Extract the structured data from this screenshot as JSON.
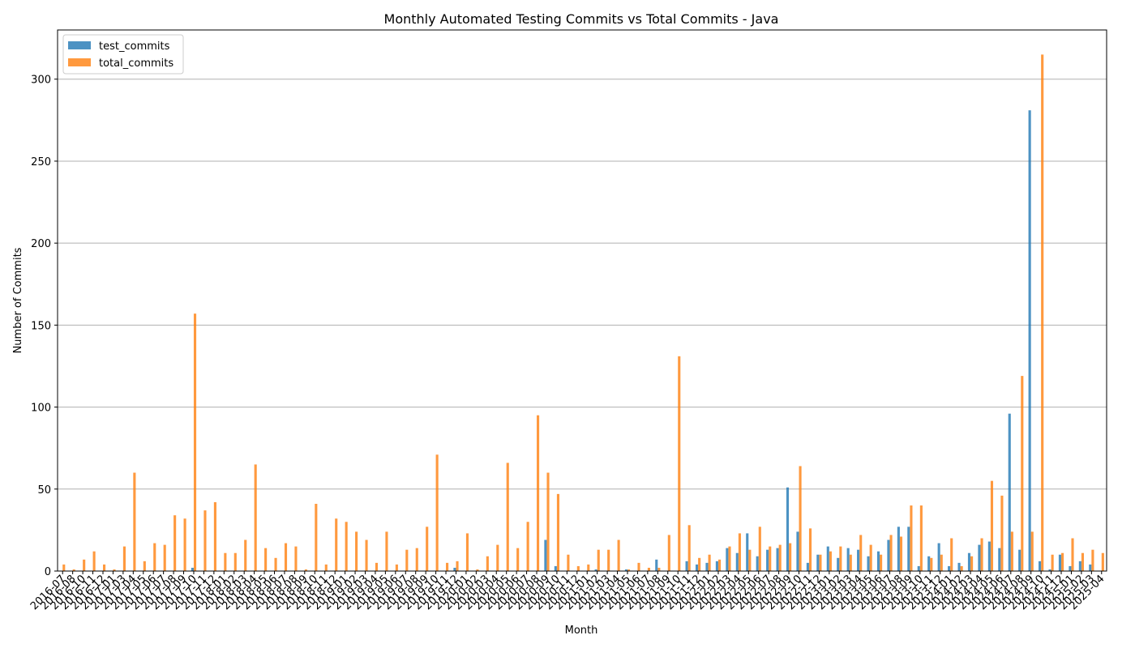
{
  "chart_data": {
    "type": "bar",
    "title": "Monthly Automated Testing Commits vs Total Commits - Java",
    "xlabel": "Month",
    "ylabel": "Number of Commits",
    "ylim": [
      0,
      330
    ],
    "yticks": [
      0,
      50,
      100,
      150,
      200,
      250,
      300
    ],
    "grid": "y",
    "legend": "top-left",
    "colors": {
      "test_commits": "#1f77b4",
      "total_commits": "#ff7f0e"
    },
    "categories": [
      "2016-07",
      "2016-08",
      "2016-10",
      "2016-11",
      "2016-12",
      "2017-01",
      "2017-03",
      "2017-04",
      "2017-05",
      "2017-06",
      "2017-07",
      "2017-08",
      "2017-09",
      "2017-10",
      "2017-11",
      "2017-12",
      "2018-01",
      "2018-02",
      "2018-03",
      "2018-04",
      "2018-05",
      "2018-06",
      "2018-07",
      "2018-08",
      "2018-09",
      "2018-10",
      "2018-11",
      "2018-12",
      "2019-01",
      "2019-02",
      "2019-03",
      "2019-04",
      "2019-05",
      "2019-06",
      "2019-07",
      "2019-08",
      "2019-09",
      "2019-10",
      "2019-11",
      "2019-12",
      "2020-01",
      "2020-02",
      "2020-03",
      "2020-04",
      "2020-05",
      "2020-06",
      "2020-07",
      "2020-08",
      "2020-09",
      "2020-10",
      "2020-11",
      "2020-12",
      "2021-01",
      "2021-02",
      "2021-03",
      "2021-04",
      "2021-05",
      "2021-06",
      "2021-07",
      "2021-08",
      "2021-09",
      "2021-10",
      "2021-11",
      "2021-12",
      "2022-01",
      "2022-02",
      "2022-03",
      "2022-04",
      "2022-05",
      "2022-06",
      "2022-07",
      "2022-08",
      "2022-09",
      "2022-10",
      "2022-11",
      "2022-12",
      "2023-01",
      "2023-02",
      "2023-03",
      "2023-04",
      "2023-05",
      "2023-06",
      "2023-07",
      "2023-08",
      "2023-09",
      "2023-10",
      "2023-11",
      "2023-12",
      "2024-01",
      "2024-02",
      "2024-03",
      "2024-04",
      "2024-05",
      "2024-06",
      "2024-07",
      "2024-08",
      "2024-09",
      "2024-10",
      "2024-11",
      "2024-12",
      "2025-01",
      "2025-02",
      "2025-03",
      "2025-04"
    ],
    "series": [
      {
        "name": "test_commits",
        "values": [
          0,
          0,
          0,
          0,
          0,
          0,
          0,
          0,
          0,
          0,
          0,
          0,
          0,
          2,
          0,
          0,
          0,
          0,
          0,
          0,
          0,
          0,
          0,
          0,
          0,
          0,
          0,
          0,
          0,
          0,
          0,
          0,
          0,
          0,
          0,
          0,
          0,
          0,
          0,
          2,
          0,
          0,
          0,
          0,
          0,
          0,
          0,
          0,
          19,
          3,
          0,
          0,
          0,
          1,
          0,
          0,
          1,
          0,
          0,
          7,
          0,
          0,
          6,
          4,
          5,
          6,
          14,
          11,
          23,
          9,
          13,
          14,
          51,
          24,
          5,
          10,
          15,
          8,
          14,
          13,
          9,
          12,
          19,
          27,
          27,
          3,
          9,
          17,
          3,
          5,
          11,
          16,
          18,
          14,
          96,
          13,
          281,
          6,
          1,
          10,
          3,
          6,
          4,
          0
        ]
      },
      {
        "name": "total_commits",
        "values": [
          4,
          1,
          7,
          12,
          4,
          1,
          15,
          60,
          6,
          17,
          16,
          34,
          32,
          157,
          37,
          42,
          11,
          11,
          19,
          65,
          14,
          8,
          17,
          15,
          1,
          41,
          4,
          32,
          30,
          24,
          19,
          5,
          24,
          4,
          13,
          14,
          27,
          71,
          5,
          6,
          23,
          1,
          9,
          16,
          66,
          14,
          30,
          95,
          60,
          47,
          10,
          3,
          4,
          13,
          13,
          19,
          1,
          5,
          2,
          2,
          22,
          131,
          28,
          8,
          10,
          7,
          15,
          23,
          13,
          27,
          15,
          16,
          17,
          64,
          26,
          10,
          12,
          15,
          10,
          22,
          16,
          10,
          22,
          21,
          40,
          40,
          8,
          10,
          20,
          3,
          9,
          20,
          55,
          46,
          24,
          119,
          24,
          315,
          10,
          11,
          20,
          11,
          13,
          11
        ]
      }
    ]
  }
}
